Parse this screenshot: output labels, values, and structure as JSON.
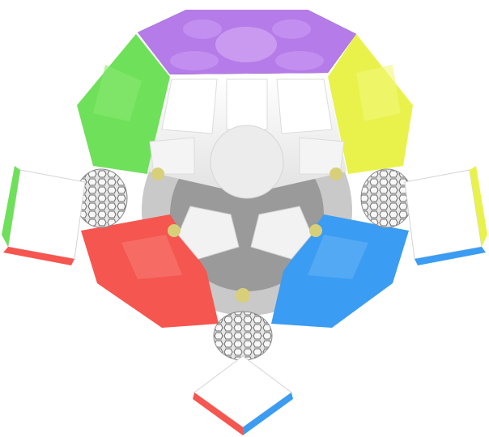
{
  "image": {
    "subject": "megaminx",
    "colors": {
      "purple": "#b57be8",
      "green": "#6fe05a",
      "yellow": "#e9f24a",
      "red": "#f5564f",
      "blue": "#3a9cf2",
      "white": "#f3f3f3",
      "core": "#cfcfcf",
      "magnet": "#d8cf7a"
    }
  }
}
